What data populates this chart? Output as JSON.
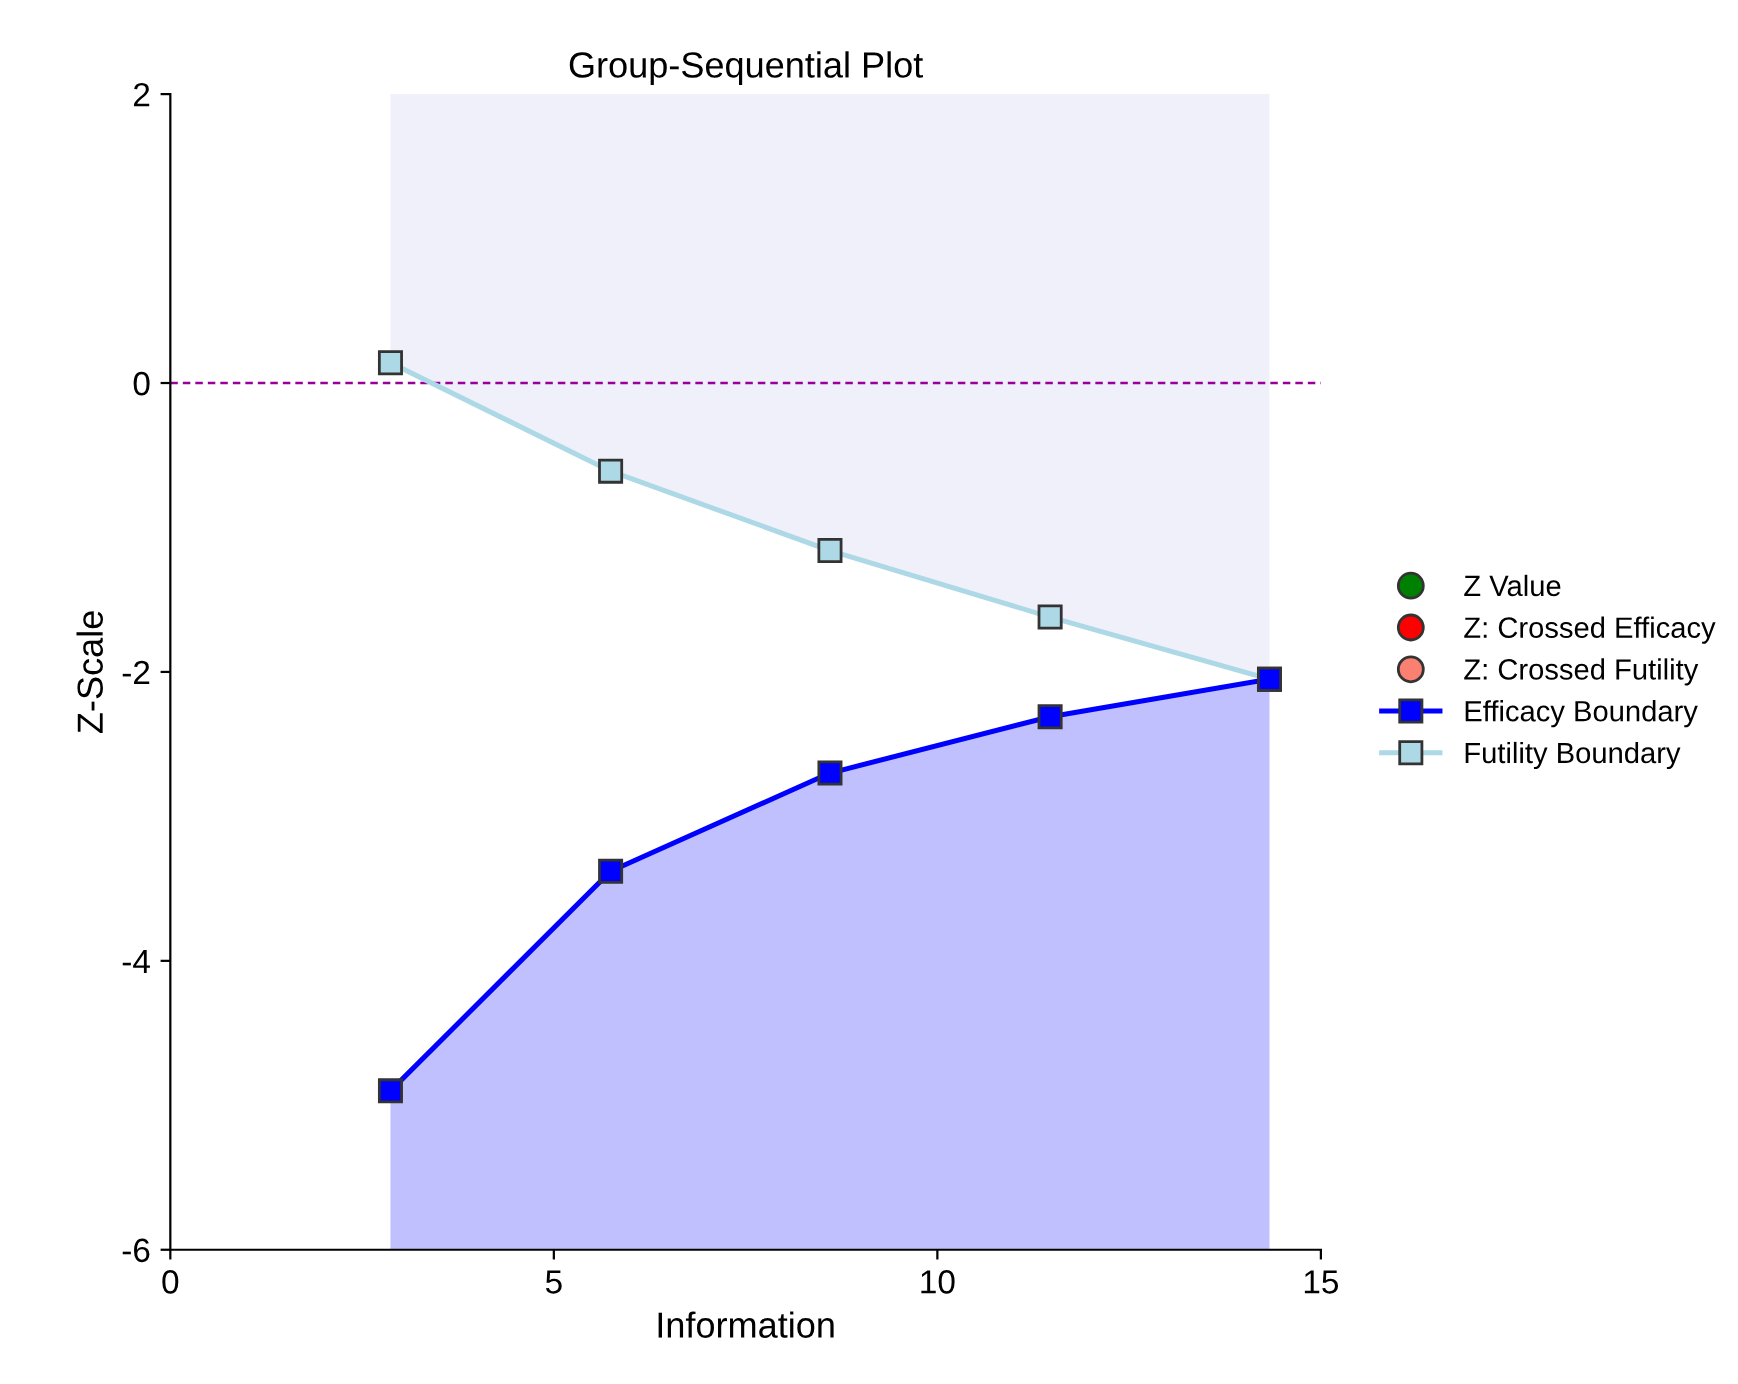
{
  "chart_data": {
    "type": "line",
    "title": "Group-Sequential Plot",
    "xlabel": "Information",
    "ylabel": "Z-Scale",
    "x": [
      2.87,
      5.74,
      8.6,
      11.47,
      14.33
    ],
    "series": [
      {
        "name": "Z Value",
        "type": "scatter",
        "marker": "circle",
        "color": "#008000",
        "values": [
          null,
          null,
          null,
          null,
          null
        ]
      },
      {
        "name": "Z: Crossed Efficacy",
        "type": "scatter",
        "marker": "circle",
        "color": "#ff0000",
        "values": [
          null,
          null,
          null,
          null,
          null
        ]
      },
      {
        "name": "Z: Crossed Futility",
        "type": "scatter",
        "marker": "circle",
        "color": "#fa8072",
        "values": [
          null,
          null,
          null,
          null,
          null
        ]
      },
      {
        "name": "Efficacy Boundary",
        "marker": "square",
        "color": "#0000ff",
        "values": [
          -4.9,
          -3.38,
          -2.7,
          -2.31,
          -2.05
        ],
        "lower": [
          -6,
          -6,
          -6,
          -6,
          -6
        ],
        "upper": [
          -4.9,
          -3.38,
          -2.7,
          -2.31,
          -2.05
        ]
      },
      {
        "name": "Futility Boundary",
        "marker": "square",
        "color": "#add8e6",
        "values": [
          0.14,
          -0.61,
          -1.16,
          -1.62,
          -2.05
        ],
        "lower": [
          0.14,
          -0.61,
          -1.16,
          -1.62,
          -2.05
        ],
        "upper": [
          2,
          2,
          2,
          2,
          2
        ]
      }
    ],
    "xlim": [
      0,
      15
    ],
    "xticks": [
      0,
      5,
      10,
      15
    ],
    "ylim": [
      -6,
      2
    ],
    "yticks": [
      -6,
      -4,
      -2,
      0,
      2
    ],
    "ref_lines": [
      {
        "axis": "y",
        "value": 0,
        "color": "#990099",
        "line_style": "dashed"
      }
    ],
    "grid": false,
    "legend": "right"
  }
}
